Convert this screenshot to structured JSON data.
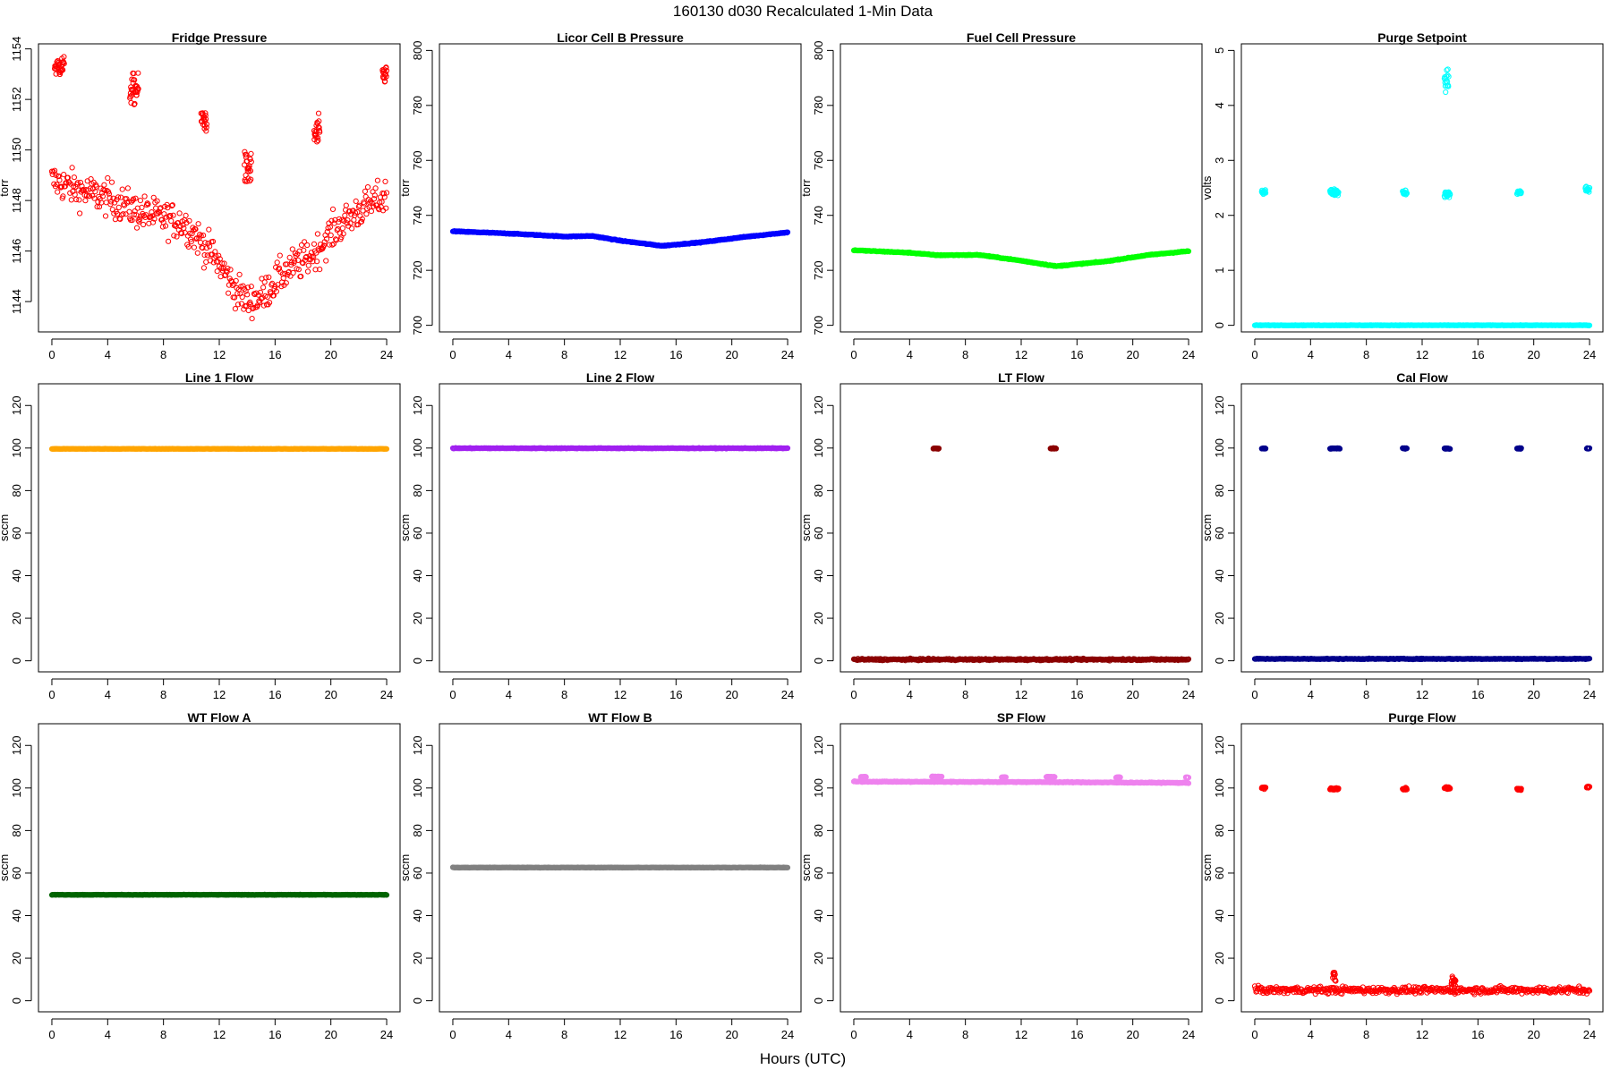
{
  "figure": {
    "title": "160130   d030   Recalculated 1-Min Data",
    "xlabel": "Hours (UTC)"
  },
  "chart_data": [
    {
      "type": "scatter",
      "title": "Fridge Pressure",
      "ylabel": "torr",
      "color": "#ff0000",
      "xlim": [
        -0.96,
        24.96
      ],
      "ylim": [
        1142.8,
        1154.2
      ],
      "xticks": [
        0,
        4,
        8,
        12,
        16,
        20,
        24
      ],
      "yticks": [
        1144,
        1146,
        1148,
        1150,
        1152,
        1154
      ],
      "baseline": [
        [
          0,
          1148.8
        ],
        [
          2,
          1148.4
        ],
        [
          4,
          1148.1
        ],
        [
          6,
          1147.6
        ],
        [
          8,
          1147.3
        ],
        [
          9.5,
          1147.1
        ],
        [
          10.5,
          1146.5
        ],
        [
          12,
          1145.5
        ],
        [
          13,
          1144.6
        ],
        [
          14,
          1144.0
        ],
        [
          15,
          1144.2
        ],
        [
          16,
          1144.8
        ],
        [
          17,
          1145.3
        ],
        [
          18,
          1145.6
        ],
        [
          19,
          1146.0
        ],
        [
          20,
          1146.7
        ],
        [
          22,
          1147.6
        ],
        [
          24,
          1148.2
        ]
      ],
      "scatter": 0.7,
      "bursts": [
        [
          0.2,
          0.9,
          1153.3,
          0.4
        ],
        [
          5.6,
          6.2,
          1152.4,
          0.6
        ],
        [
          10.7,
          11.1,
          1151.2,
          0.5
        ],
        [
          13.8,
          14.3,
          1149.2,
          0.7
        ],
        [
          18.8,
          19.2,
          1150.6,
          0.7
        ],
        [
          23.7,
          24.0,
          1153.0,
          0.4
        ]
      ]
    },
    {
      "type": "scatter",
      "title": "Licor Cell B Pressure",
      "ylabel": "torr",
      "color": "#0000ff",
      "xlim": [
        -0.96,
        24.96
      ],
      "ylim": [
        697.6,
        802.4
      ],
      "xticks": [
        0,
        4,
        8,
        12,
        16,
        20,
        24
      ],
      "yticks": [
        700,
        720,
        740,
        760,
        780,
        800
      ],
      "baseline": [
        [
          0,
          734.2
        ],
        [
          4,
          733.4
        ],
        [
          8,
          732.3
        ],
        [
          10,
          732.5
        ],
        [
          12,
          730.8
        ],
        [
          15,
          728.9
        ],
        [
          18,
          730.3
        ],
        [
          21,
          732.2
        ],
        [
          24,
          733.8
        ]
      ],
      "scatter": 0.15,
      "bursts": []
    },
    {
      "type": "scatter",
      "title": "Fuel Cell Pressure",
      "ylabel": "torr",
      "color": "#00ff00",
      "xlim": [
        -0.96,
        24.96
      ],
      "ylim": [
        697.6,
        802.4
      ],
      "xticks": [
        0,
        4,
        8,
        12,
        16,
        20,
        24
      ],
      "yticks": [
        700,
        720,
        740,
        760,
        780,
        800
      ],
      "baseline": [
        [
          0,
          727.3
        ],
        [
          4,
          726.4
        ],
        [
          6,
          725.5
        ],
        [
          9,
          725.6
        ],
        [
          12,
          723.5
        ],
        [
          14.5,
          721.5
        ],
        [
          18,
          723.2
        ],
        [
          21,
          725.5
        ],
        [
          24,
          727.0
        ]
      ],
      "scatter": 0.15,
      "bursts": []
    },
    {
      "type": "scatter",
      "title": "Purge Setpoint",
      "ylabel": "volts",
      "color": "#00ffff",
      "xlim": [
        -0.96,
        24.96
      ],
      "ylim": [
        -0.12,
        5.12
      ],
      "xticks": [
        0,
        4,
        8,
        12,
        16,
        20,
        24
      ],
      "yticks": [
        0,
        1,
        2,
        3,
        4,
        5
      ],
      "baseline": [
        [
          0,
          0
        ],
        [
          24,
          0
        ]
      ],
      "scatter": 0.005,
      "bursts": [
        [
          0.5,
          0.8,
          2.43,
          0.05
        ],
        [
          5.4,
          6.0,
          2.42,
          0.06
        ],
        [
          10.6,
          10.9,
          2.42,
          0.05
        ],
        [
          13.6,
          14.0,
          2.38,
          0.05
        ],
        [
          13.6,
          13.9,
          4.45,
          0.25
        ],
        [
          18.8,
          19.1,
          2.42,
          0.05
        ],
        [
          23.7,
          24.0,
          2.47,
          0.06
        ]
      ]
    },
    {
      "type": "scatter",
      "title": "Line 1 Flow",
      "ylabel": "sccm",
      "color": "#ffa500",
      "xlim": [
        -0.96,
        24.96
      ],
      "ylim": [
        -5.2,
        130.2
      ],
      "xticks": [
        0,
        4,
        8,
        12,
        16,
        20,
        24
      ],
      "yticks": [
        0,
        20,
        40,
        60,
        80,
        100,
        120
      ],
      "baseline": [
        [
          0,
          99.6
        ],
        [
          24,
          99.6
        ]
      ],
      "scatter": 0.1,
      "bursts": []
    },
    {
      "type": "scatter",
      "title": "Line 2 Flow",
      "ylabel": "sccm",
      "color": "#a020f0",
      "xlim": [
        -0.96,
        24.96
      ],
      "ylim": [
        -5.2,
        130.2
      ],
      "xticks": [
        0,
        4,
        8,
        12,
        16,
        20,
        24
      ],
      "yticks": [
        0,
        20,
        40,
        60,
        80,
        100,
        120
      ],
      "baseline": [
        [
          0,
          99.9
        ],
        [
          24,
          99.9
        ]
      ],
      "scatter": 0.15,
      "bursts": []
    },
    {
      "type": "scatter",
      "title": "LT Flow",
      "ylabel": "sccm",
      "color": "#8b0000",
      "xlim": [
        -0.96,
        24.96
      ],
      "ylim": [
        -5.2,
        130.2
      ],
      "xticks": [
        0,
        4,
        8,
        12,
        16,
        20,
        24
      ],
      "yticks": [
        0,
        20,
        40,
        60,
        80,
        100,
        120
      ],
      "baseline": [
        [
          0,
          0.6
        ],
        [
          24,
          0.6
        ]
      ],
      "scatter": 0.4,
      "bursts": [
        [
          5.7,
          6.1,
          99.8,
          0.2
        ],
        [
          14.1,
          14.5,
          99.8,
          0.2
        ]
      ]
    },
    {
      "type": "scatter",
      "title": "Cal Flow",
      "ylabel": "sccm",
      "color": "#00008b",
      "xlim": [
        -0.96,
        24.96
      ],
      "ylim": [
        -5.2,
        130.2
      ],
      "xticks": [
        0,
        4,
        8,
        12,
        16,
        20,
        24
      ],
      "yticks": [
        0,
        20,
        40,
        60,
        80,
        100,
        120
      ],
      "baseline": [
        [
          0,
          0.9
        ],
        [
          24,
          0.9
        ]
      ],
      "scatter": 0.2,
      "bursts": [
        [
          0.5,
          0.8,
          99.8,
          0.2
        ],
        [
          5.4,
          6.1,
          99.8,
          0.2
        ],
        [
          10.6,
          10.9,
          99.8,
          0.2
        ],
        [
          13.6,
          14.0,
          99.8,
          0.2
        ],
        [
          18.8,
          19.1,
          99.8,
          0.2
        ],
        [
          23.8,
          24.0,
          99.8,
          0.2
        ]
      ]
    },
    {
      "type": "scatter",
      "title": "WT Flow A",
      "ylabel": "sccm",
      "color": "#006400",
      "xlim": [
        -0.96,
        24.96
      ],
      "ylim": [
        -5.2,
        130.2
      ],
      "xticks": [
        0,
        4,
        8,
        12,
        16,
        20,
        24
      ],
      "yticks": [
        0,
        20,
        40,
        60,
        80,
        100,
        120
      ],
      "baseline": [
        [
          0,
          49.8
        ],
        [
          24,
          49.8
        ]
      ],
      "scatter": 0.1,
      "bursts": []
    },
    {
      "type": "scatter",
      "title": "WT Flow B",
      "ylabel": "sccm",
      "color": "#808080",
      "xlim": [
        -0.96,
        24.96
      ],
      "ylim": [
        -5.2,
        130.2
      ],
      "xticks": [
        0,
        4,
        8,
        12,
        16,
        20,
        24
      ],
      "yticks": [
        0,
        20,
        40,
        60,
        80,
        100,
        120
      ],
      "baseline": [
        [
          0,
          62.6
        ],
        [
          24,
          62.6
        ]
      ],
      "scatter": 0.1,
      "bursts": []
    },
    {
      "type": "scatter",
      "title": "SP Flow",
      "ylabel": "sccm",
      "color": "#ee82ee",
      "xlim": [
        -0.96,
        24.96
      ],
      "ylim": [
        -5.2,
        130.2
      ],
      "xticks": [
        0,
        4,
        8,
        12,
        16,
        20,
        24
      ],
      "yticks": [
        0,
        20,
        40,
        60,
        80,
        100,
        120
      ],
      "baseline": [
        [
          0,
          103.0
        ],
        [
          12,
          102.8
        ],
        [
          24,
          102.4
        ]
      ],
      "scatter": 0.2,
      "bursts": [
        [
          0.5,
          0.9,
          105.2,
          0.2
        ],
        [
          5.6,
          6.3,
          105.3,
          0.2
        ],
        [
          10.6,
          10.9,
          105.0,
          0.2
        ],
        [
          13.8,
          14.4,
          105.2,
          0.2
        ],
        [
          18.8,
          19.1,
          105.0,
          0.2
        ],
        [
          23.8,
          24.0,
          105.0,
          0.2
        ]
      ]
    },
    {
      "type": "scatter",
      "title": "Purge Flow",
      "ylabel": "sccm",
      "color": "#ff0000",
      "xlim": [
        -0.96,
        24.96
      ],
      "ylim": [
        -5.2,
        130.2
      ],
      "xticks": [
        0,
        4,
        8,
        12,
        16,
        20,
        24
      ],
      "yticks": [
        0,
        20,
        40,
        60,
        80,
        100,
        120
      ],
      "baseline": [
        [
          0,
          5.0
        ],
        [
          24,
          5.0
        ]
      ],
      "scatter": 1.6,
      "bursts": [
        [
          0.5,
          0.8,
          100.0,
          0.5
        ],
        [
          5.4,
          6.0,
          99.6,
          0.5
        ],
        [
          5.6,
          5.8,
          12.0,
          3.5
        ],
        [
          10.6,
          10.9,
          99.6,
          0.5
        ],
        [
          13.6,
          14.0,
          100.0,
          0.5
        ],
        [
          14.1,
          14.4,
          9.0,
          2.5
        ],
        [
          18.8,
          19.1,
          99.5,
          0.5
        ],
        [
          23.8,
          24.0,
          100.3,
          0.5
        ]
      ]
    }
  ]
}
